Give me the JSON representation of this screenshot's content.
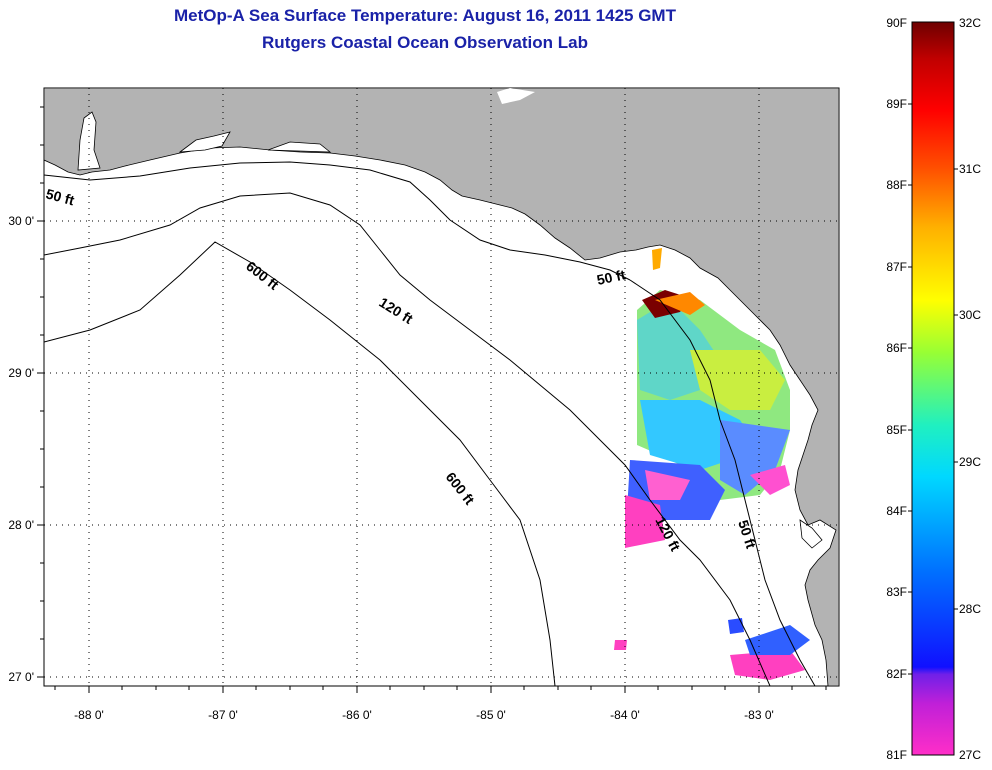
{
  "title": "MetOp-A Sea Surface Temperature:  August 16, 2011 1425 GMT",
  "subtitle": "Rutgers Coastal Ocean Observation Lab",
  "axes": {
    "lon_labels": [
      "-88 0'",
      "-87 0'",
      "-86 0'",
      "-85 0'",
      "-84 0'",
      "-83 0'"
    ],
    "lat_labels": [
      "30 0'",
      "29 0'",
      "28 0'",
      "27 0'"
    ]
  },
  "contours": [
    {
      "label": "50 ft"
    },
    {
      "label": "600 ft"
    },
    {
      "label": "120 ft"
    },
    {
      "label": "50 ft"
    },
    {
      "label": "600 ft"
    },
    {
      "label": "120 ft"
    },
    {
      "label": "50 ft"
    }
  ],
  "colorbar": {
    "fahrenheit": [
      "90F",
      "89F",
      "88F",
      "87F",
      "86F",
      "85F",
      "84F",
      "83F",
      "82F",
      "81F"
    ],
    "celsius": [
      "32C",
      "31C",
      "30C",
      "29C",
      "28C",
      "27C"
    ],
    "colors": [
      "#ff2ec8",
      "#a01ee0",
      "#3a1ef0",
      "#1450ff",
      "#00a8ff",
      "#00f0f0",
      "#55ff88",
      "#ccff22",
      "#ffff00",
      "#ffb000",
      "#ff6000",
      "#ff0000",
      "#cc0000",
      "#7a0000"
    ]
  },
  "colors": {
    "land": "#b3b3b3",
    "water": "#ffffff",
    "title": "#1a22a8"
  }
}
